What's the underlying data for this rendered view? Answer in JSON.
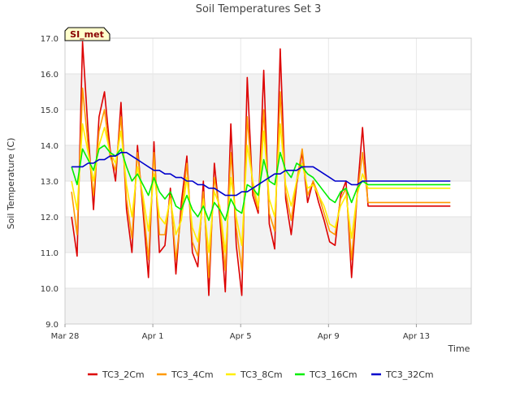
{
  "chart_data": {
    "type": "line",
    "title": "Soil Temperatures Set 3",
    "xlabel": "Time",
    "ylabel": "Soil Temperature (C)",
    "site_badge": "SI_met",
    "xlim_days": [
      0,
      18.5
    ],
    "ylim": [
      9.0,
      17.0
    ],
    "yticks": [
      9.0,
      10.0,
      11.0,
      12.0,
      13.0,
      14.0,
      15.0,
      16.0,
      17.0
    ],
    "xticks": [
      {
        "day": 0,
        "label": "Mar 28"
      },
      {
        "day": 4,
        "label": "Apr 1"
      },
      {
        "day": 8,
        "label": "Apr 5"
      },
      {
        "day": 12,
        "label": "Apr 9"
      },
      {
        "day": 16,
        "label": "Apr 13"
      }
    ],
    "grid": true,
    "legend_position": "bottom",
    "x_days": [
      0.3,
      0.55,
      0.8,
      1.05,
      1.3,
      1.55,
      1.8,
      2.05,
      2.3,
      2.55,
      2.8,
      3.05,
      3.3,
      3.55,
      3.8,
      4.05,
      4.3,
      4.55,
      4.8,
      5.05,
      5.3,
      5.55,
      5.8,
      6.05,
      6.3,
      6.55,
      6.8,
      7.05,
      7.3,
      7.55,
      7.8,
      8.05,
      8.3,
      8.55,
      8.8,
      9.05,
      9.3,
      9.55,
      9.8,
      10.05,
      10.3,
      10.55,
      10.8,
      11.05,
      11.3,
      11.55,
      11.8,
      12.05,
      12.3,
      12.55,
      12.8,
      13.05,
      13.3,
      13.55,
      13.8,
      14.05,
      14.3,
      14.55,
      14.8,
      15.05,
      15.3,
      15.55,
      15.8,
      16.05,
      16.3,
      16.55,
      16.8,
      17.05,
      17.3,
      17.55
    ],
    "series": [
      {
        "name": "TC3_2Cm",
        "color": "#dd0000",
        "values": [
          12.0,
          10.9,
          16.9,
          14.4,
          12.2,
          14.8,
          15.5,
          13.9,
          13.0,
          15.2,
          12.2,
          11.0,
          14.0,
          12.2,
          10.3,
          14.1,
          11.0,
          11.2,
          12.8,
          10.4,
          12.4,
          13.7,
          11.0,
          10.6,
          13.0,
          9.8,
          13.5,
          12.0,
          9.9,
          14.6,
          11.2,
          9.8,
          15.9,
          12.6,
          12.1,
          16.1,
          11.8,
          11.1,
          16.7,
          12.5,
          11.5,
          12.9,
          13.8,
          12.4,
          13.0,
          12.4,
          11.9,
          11.3,
          11.2,
          12.6,
          13.0,
          10.3,
          12.6,
          14.5,
          12.3,
          12.3,
          12.3,
          12.3,
          12.3,
          12.3,
          12.3,
          12.3,
          12.3,
          12.3,
          12.3,
          12.3,
          12.3,
          12.3,
          12.3,
          12.3
        ]
      },
      {
        "name": "TC3_4Cm",
        "color": "#ff9900",
        "values": [
          12.7,
          11.5,
          15.6,
          14.0,
          12.6,
          14.4,
          15.0,
          13.7,
          13.3,
          14.8,
          12.5,
          11.4,
          13.8,
          12.4,
          10.8,
          13.8,
          11.5,
          11.5,
          12.6,
          10.8,
          12.1,
          13.5,
          11.3,
          10.9,
          12.7,
          10.3,
          13.1,
          12.2,
          10.5,
          13.8,
          11.7,
          10.5,
          14.8,
          12.8,
          12.2,
          15.0,
          12.1,
          11.6,
          15.5,
          12.7,
          11.9,
          13.0,
          13.9,
          12.6,
          13.0,
          12.6,
          12.1,
          11.6,
          11.5,
          12.5,
          12.8,
          10.8,
          12.6,
          13.8,
          12.4,
          12.4,
          12.4,
          12.4,
          12.4,
          12.4,
          12.4,
          12.4,
          12.4,
          12.4,
          12.4,
          12.4,
          12.4,
          12.4,
          12.4,
          12.4
        ]
      },
      {
        "name": "TC3_8Cm",
        "color": "#ffee00",
        "values": [
          13.0,
          12.2,
          14.6,
          13.8,
          13.0,
          14.0,
          14.5,
          13.8,
          13.5,
          14.4,
          12.9,
          12.0,
          13.4,
          12.6,
          11.6,
          13.2,
          12.0,
          11.8,
          12.5,
          11.5,
          11.9,
          13.1,
          11.7,
          11.3,
          12.5,
          11.0,
          12.7,
          12.3,
          11.0,
          13.1,
          12.0,
          11.2,
          14.0,
          13.0,
          12.3,
          14.4,
          12.5,
          12.0,
          14.6,
          12.9,
          12.3,
          13.0,
          13.5,
          12.8,
          12.9,
          12.6,
          12.3,
          11.8,
          11.7,
          12.3,
          12.6,
          11.4,
          12.6,
          13.2,
          12.8,
          12.8,
          12.8,
          12.8,
          12.8,
          12.8,
          12.8,
          12.8,
          12.8,
          12.8,
          12.8,
          12.8,
          12.8,
          12.8,
          12.8,
          12.8
        ]
      },
      {
        "name": "TC3_16Cm",
        "color": "#00ee00",
        "values": [
          13.4,
          12.9,
          13.9,
          13.6,
          13.3,
          13.9,
          14.0,
          13.8,
          13.7,
          13.9,
          13.4,
          13.0,
          13.2,
          12.9,
          12.6,
          13.1,
          12.7,
          12.5,
          12.7,
          12.3,
          12.2,
          12.6,
          12.2,
          12.0,
          12.3,
          11.9,
          12.4,
          12.2,
          11.9,
          12.5,
          12.2,
          12.1,
          12.9,
          12.8,
          12.6,
          13.6,
          13.0,
          12.9,
          13.8,
          13.3,
          13.1,
          13.5,
          13.4,
          13.2,
          13.1,
          12.9,
          12.7,
          12.5,
          12.4,
          12.7,
          12.8,
          12.4,
          12.8,
          13.0,
          12.9,
          12.9,
          12.9,
          12.9,
          12.9,
          12.9,
          12.9,
          12.9,
          12.9,
          12.9,
          12.9,
          12.9,
          12.9,
          12.9,
          12.9,
          12.9
        ]
      },
      {
        "name": "TC3_32Cm",
        "color": "#0000cc",
        "values": [
          13.4,
          13.4,
          13.4,
          13.5,
          13.5,
          13.6,
          13.6,
          13.7,
          13.7,
          13.8,
          13.8,
          13.7,
          13.6,
          13.5,
          13.4,
          13.3,
          13.3,
          13.2,
          13.2,
          13.1,
          13.1,
          13.0,
          13.0,
          12.9,
          12.9,
          12.8,
          12.8,
          12.7,
          12.6,
          12.6,
          12.6,
          12.7,
          12.7,
          12.8,
          12.9,
          13.0,
          13.1,
          13.2,
          13.2,
          13.3,
          13.3,
          13.3,
          13.4,
          13.4,
          13.4,
          13.3,
          13.2,
          13.1,
          13.0,
          13.0,
          13.0,
          12.9,
          12.9,
          13.0,
          13.0,
          13.0,
          13.0,
          13.0,
          13.0,
          13.0,
          13.0,
          13.0,
          13.0,
          13.0,
          13.0,
          13.0,
          13.0,
          13.0,
          13.0,
          13.0
        ]
      }
    ]
  }
}
